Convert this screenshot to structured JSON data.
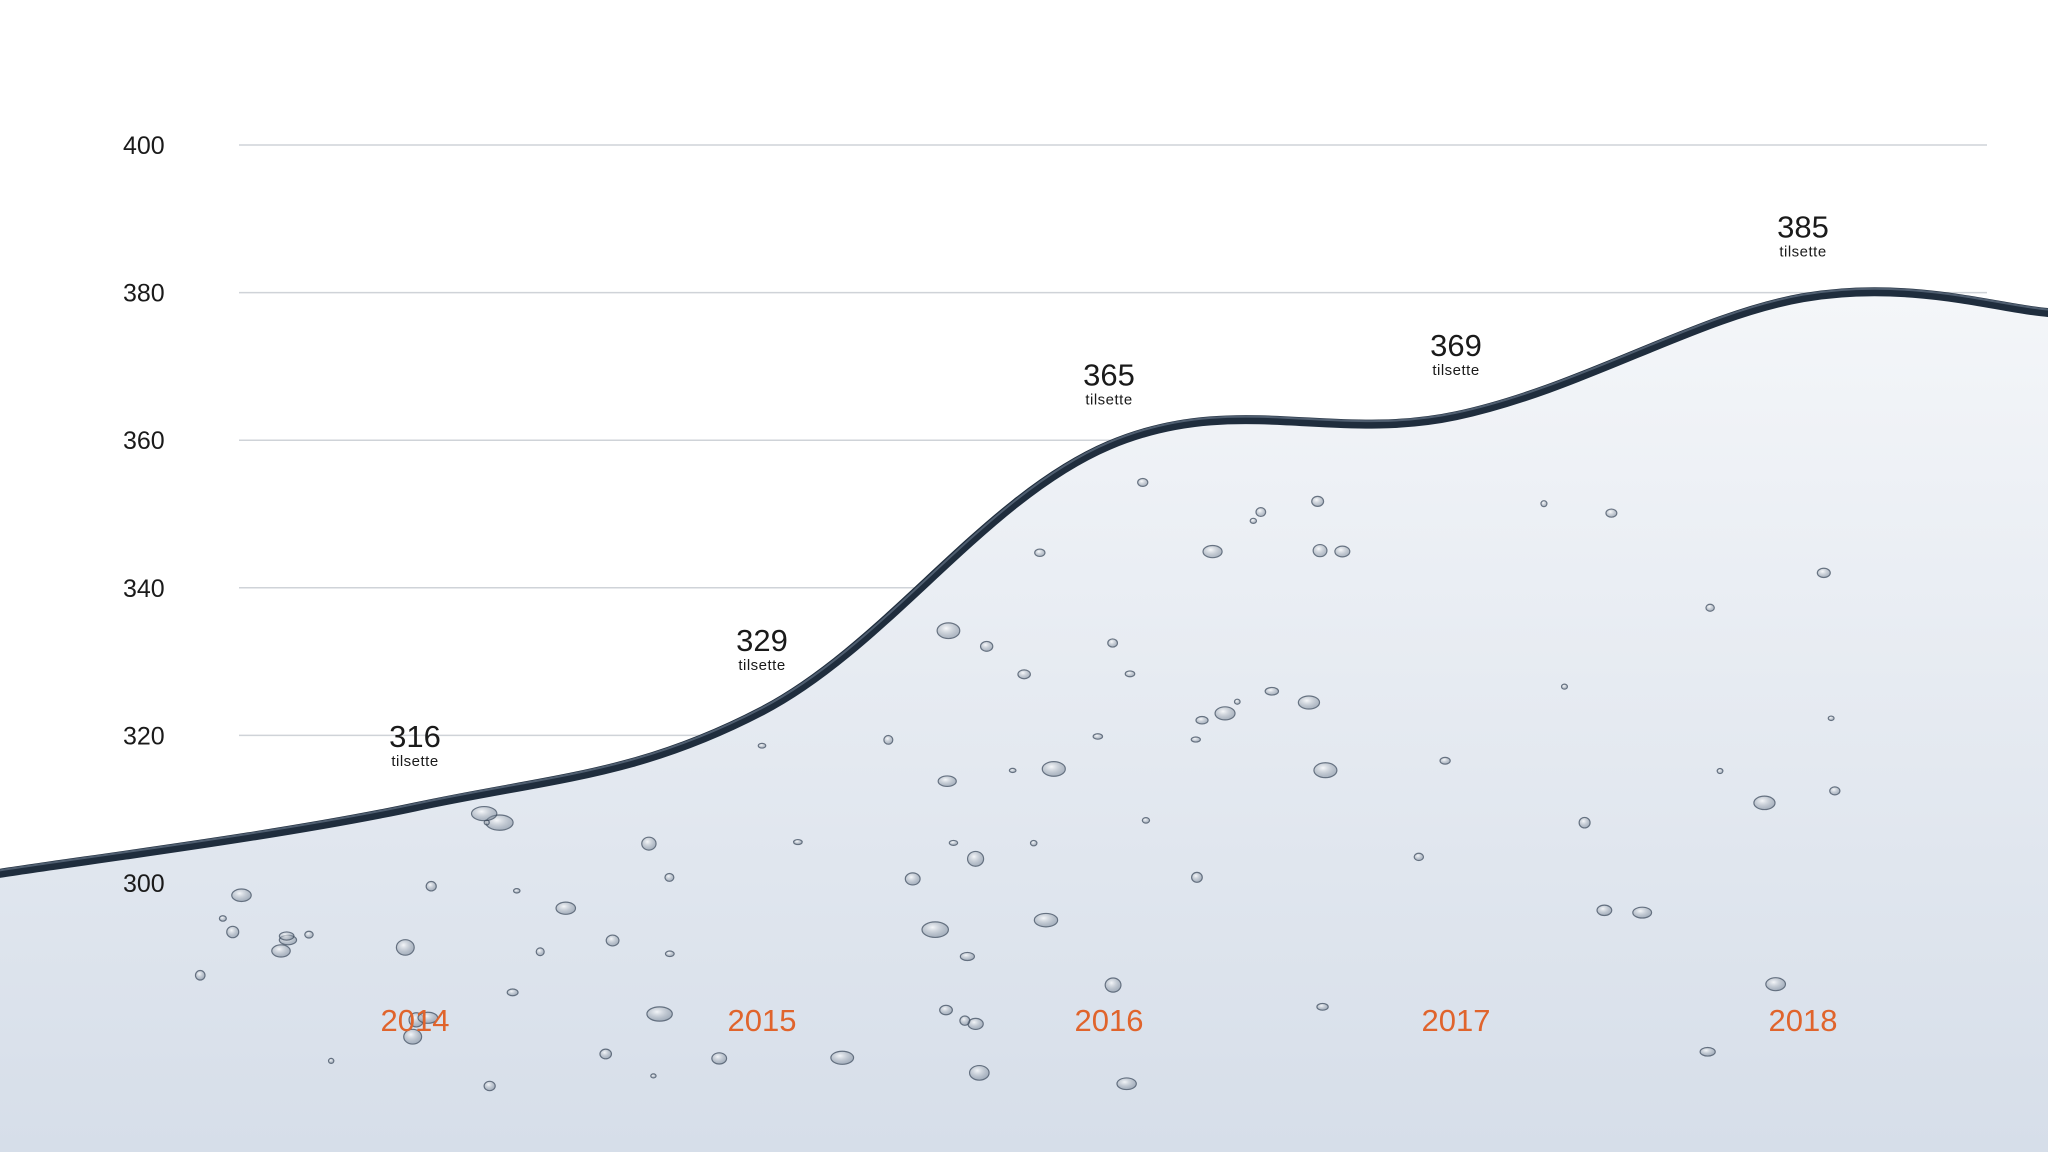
{
  "chart_data": {
    "type": "area",
    "categories": [
      "2014",
      "2015",
      "2016",
      "2017",
      "2018"
    ],
    "values": [
      316,
      329,
      365,
      369,
      385
    ],
    "data_labels": [
      "316",
      "329",
      "365",
      "369",
      "385"
    ],
    "value_unit": "tilsette",
    "title": "",
    "xlabel": "",
    "ylabel": "",
    "ylim": [
      300,
      400
    ],
    "yticks": [
      "300",
      "320",
      "340",
      "360",
      "380",
      "400"
    ],
    "grid": true,
    "legend": "none",
    "style": "water surface",
    "colors": {
      "water_top": "#f4f6f9",
      "water_bottom": "#d6dee9",
      "surface_line": "#1f2d3d",
      "gridline": "#cfd3d8",
      "year_label": "#e0642c",
      "text": "#1a1a1a"
    }
  }
}
